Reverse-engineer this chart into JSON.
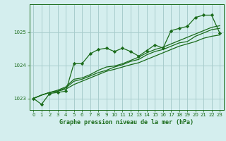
{
  "title": "Graphe pression niveau de la mer (hPa)",
  "bg_color": "#d4eeee",
  "grid_color": "#a8cccc",
  "line_color": "#1a6b1a",
  "xlim": [
    -0.5,
    23.5
  ],
  "ylim": [
    1022.65,
    1025.85
  ],
  "yticks": [
    1023,
    1024,
    1025
  ],
  "xticks": [
    0,
    1,
    2,
    3,
    4,
    5,
    6,
    7,
    8,
    9,
    10,
    11,
    12,
    13,
    14,
    15,
    16,
    17,
    18,
    19,
    20,
    21,
    22,
    23
  ],
  "series1": [
    1023.0,
    1022.82,
    1023.15,
    1023.18,
    1023.22,
    1024.05,
    1024.05,
    1024.35,
    1024.48,
    1024.52,
    1024.42,
    1024.52,
    1024.42,
    1024.28,
    1024.45,
    1024.62,
    1024.52,
    1025.05,
    1025.12,
    1025.18,
    1025.45,
    1025.52,
    1025.52,
    1024.98
  ],
  "series2": [
    1023.0,
    1023.1,
    1023.18,
    1023.22,
    1023.28,
    1023.42,
    1023.52,
    1023.62,
    1023.72,
    1023.82,
    1023.88,
    1023.95,
    1024.02,
    1024.08,
    1024.18,
    1024.28,
    1024.38,
    1024.48,
    1024.58,
    1024.65,
    1024.72,
    1024.82,
    1024.88,
    1024.92
  ],
  "series3": [
    1023.0,
    1023.1,
    1023.18,
    1023.22,
    1023.32,
    1023.52,
    1023.58,
    1023.68,
    1023.78,
    1023.85,
    1023.95,
    1024.02,
    1024.12,
    1024.18,
    1024.32,
    1024.42,
    1024.48,
    1024.58,
    1024.68,
    1024.72,
    1024.88,
    1024.98,
    1025.08,
    1025.12
  ],
  "series4": [
    1023.0,
    1023.1,
    1023.18,
    1023.25,
    1023.35,
    1023.58,
    1023.62,
    1023.72,
    1023.85,
    1023.95,
    1023.98,
    1024.05,
    1024.15,
    1024.25,
    1024.38,
    1024.48,
    1024.55,
    1024.65,
    1024.75,
    1024.85,
    1024.95,
    1025.05,
    1025.15,
    1025.2
  ]
}
